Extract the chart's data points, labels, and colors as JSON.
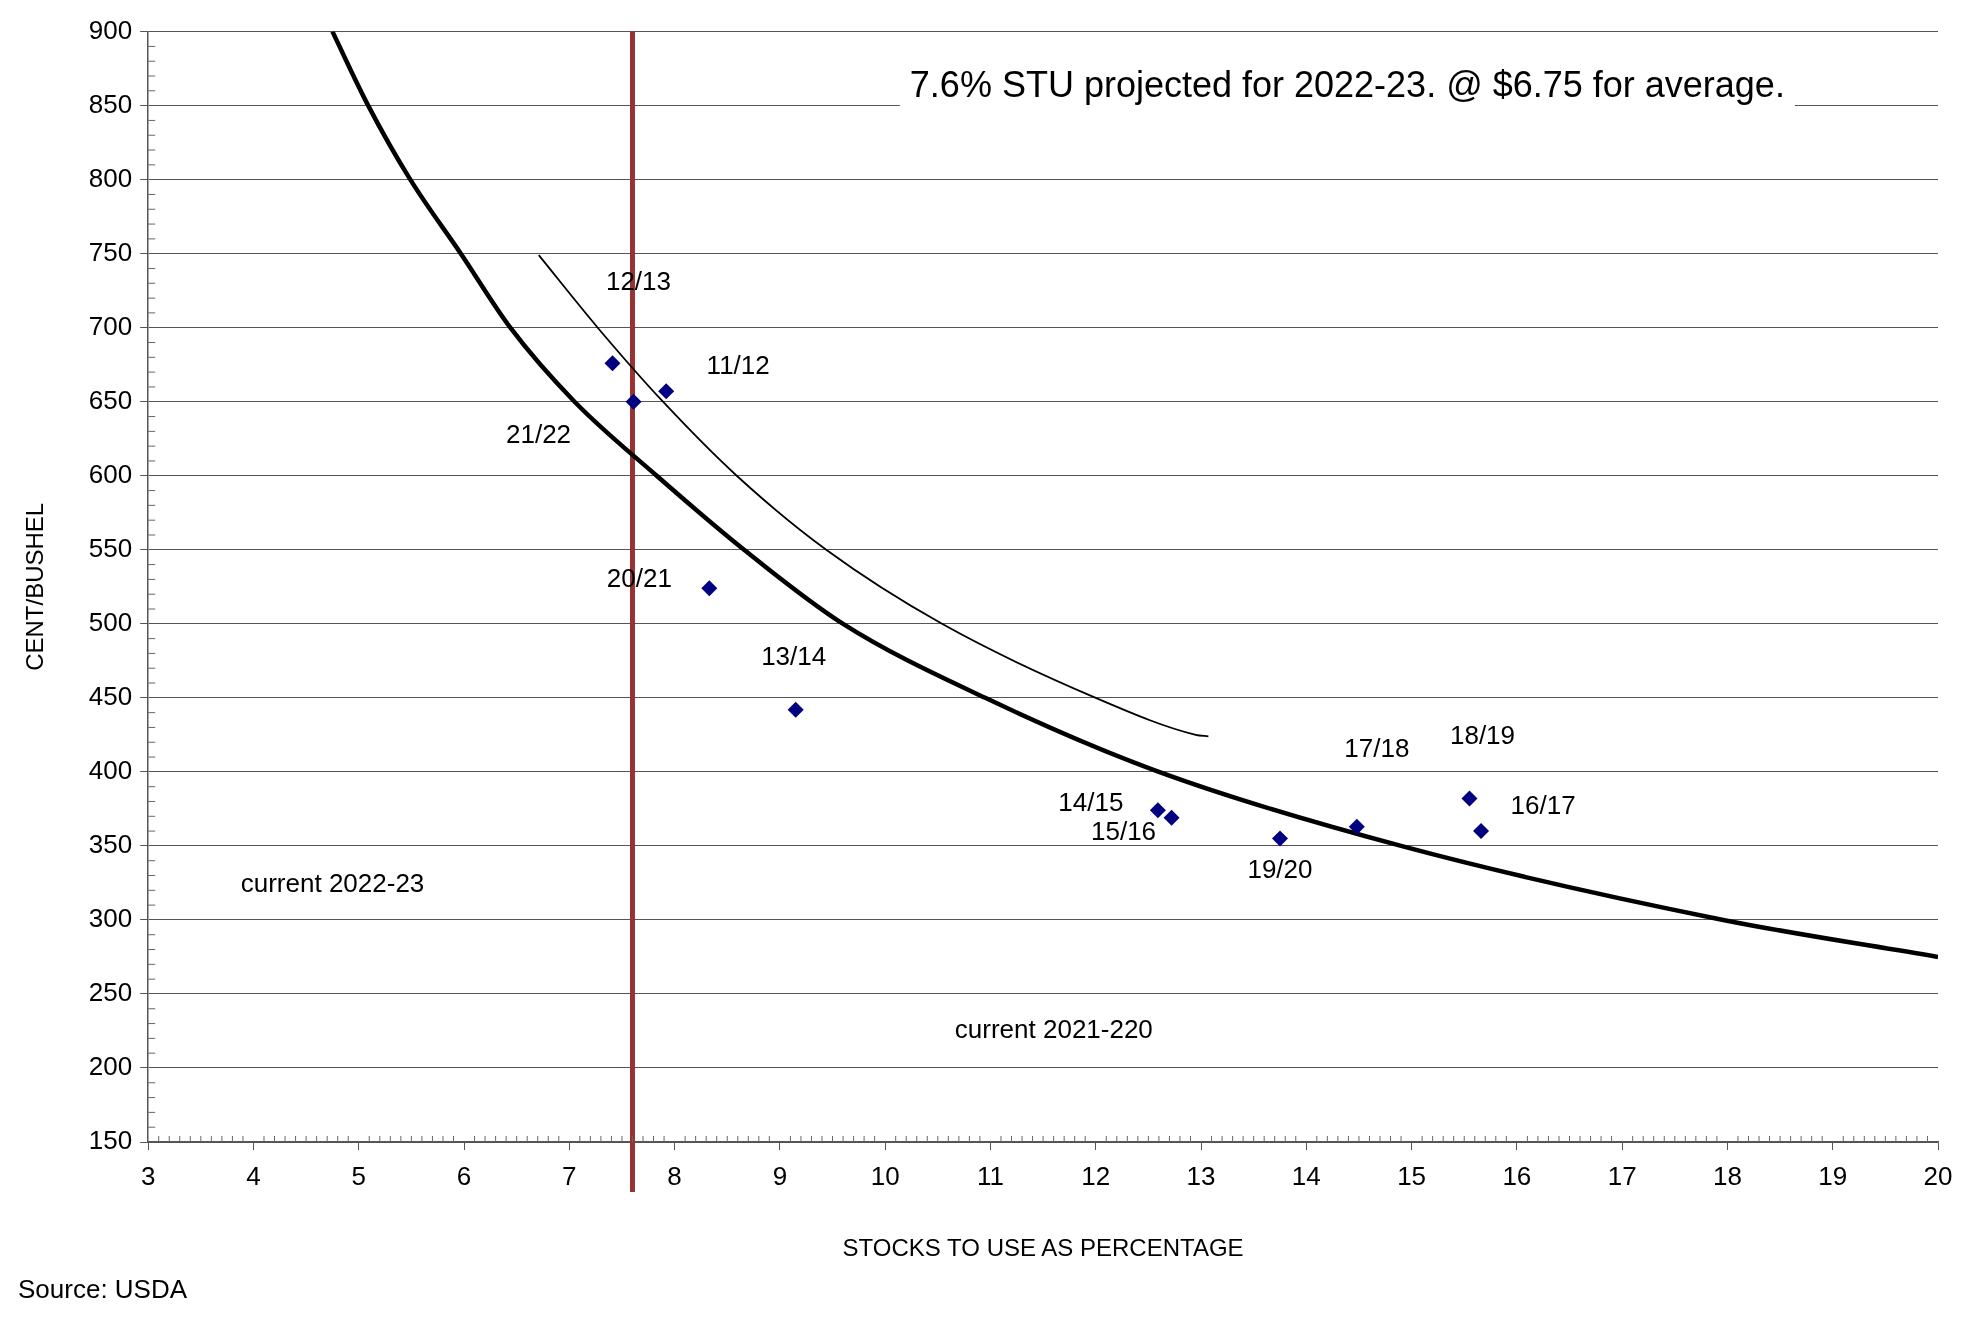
{
  "chart_data": {
    "type": "scatter",
    "title": "7.6% STU projected for 2022-23. @ $6.75 for average.",
    "xlabel": "STOCKS TO USE AS PERCENTAGE",
    "ylabel": "CENT/BUSHEL",
    "xlim": [
      3,
      20
    ],
    "xticks": [
      3,
      4,
      5,
      6,
      7,
      8,
      9,
      10,
      11,
      12,
      13,
      14,
      15,
      16,
      17,
      18,
      19,
      20
    ],
    "ylim": [
      150,
      900
    ],
    "yticks": [
      150,
      200,
      250,
      300,
      350,
      400,
      450,
      500,
      550,
      600,
      650,
      700,
      750,
      800,
      850,
      900
    ],
    "grid": "y",
    "legend": false,
    "series": [
      {
        "marker": "diamond",
        "color": "#000080",
        "x": [
          7.41,
          7.61,
          7.92,
          8.33,
          9.15,
          12.59,
          12.72,
          13.75,
          14.48,
          15.55,
          15.66
        ],
        "values": [
          676,
          650,
          657,
          524,
          442,
          374,
          369,
          355,
          363,
          382,
          360
        ]
      },
      {
        "type": "line",
        "marker": "none",
        "color": "#000000",
        "x": [
          4.75,
          5.09,
          5.49,
          5.97,
          6.44,
          7.05,
          7.83,
          8.66,
          9.6,
          10.95,
          12.6,
          14.9,
          17.96,
          20
        ],
        "values": [
          900,
          850,
          800,
          750,
          700,
          650,
          600,
          550,
          500,
          450,
          400,
          350,
          300,
          275
        ]
      },
      {
        "type": "line",
        "marker": "none",
        "color": "#000000",
        "x": [
          6.71,
          7.27,
          7.89,
          8.59,
          9.44,
          10.54,
          12,
          12.95,
          13.07
        ],
        "values": [
          749,
          700,
          650,
          600,
          550,
          500,
          450,
          425,
          424
        ]
      }
    ],
    "ref_lines": [
      {
        "axis": "x",
        "value": 7.6,
        "color": "#993333"
      }
    ],
    "annotations": [
      {
        "text": "12/13",
        "x": 7.41,
        "y": 676
      },
      {
        "text": "21/22",
        "x": 7.61,
        "y": 650
      },
      {
        "text": "11/12",
        "x": 7.92,
        "y": 657
      },
      {
        "text": "20/21",
        "x": 8.33,
        "y": 524
      },
      {
        "text": "13/14",
        "x": 9.15,
        "y": 442
      },
      {
        "text": "14/15",
        "x": 12.59,
        "y": 374
      },
      {
        "text": "15/16",
        "x": 12.72,
        "y": 369
      },
      {
        "text": "19/20",
        "x": 13.75,
        "y": 355
      },
      {
        "text": "17/18",
        "x": 14.48,
        "y": 363
      },
      {
        "text": "18/19",
        "x": 15.55,
        "y": 382
      },
      {
        "text": "16/17",
        "x": 15.66,
        "y": 360
      },
      "current 2022-23",
      "current 2021-220",
      "Source: USDA"
    ]
  }
}
